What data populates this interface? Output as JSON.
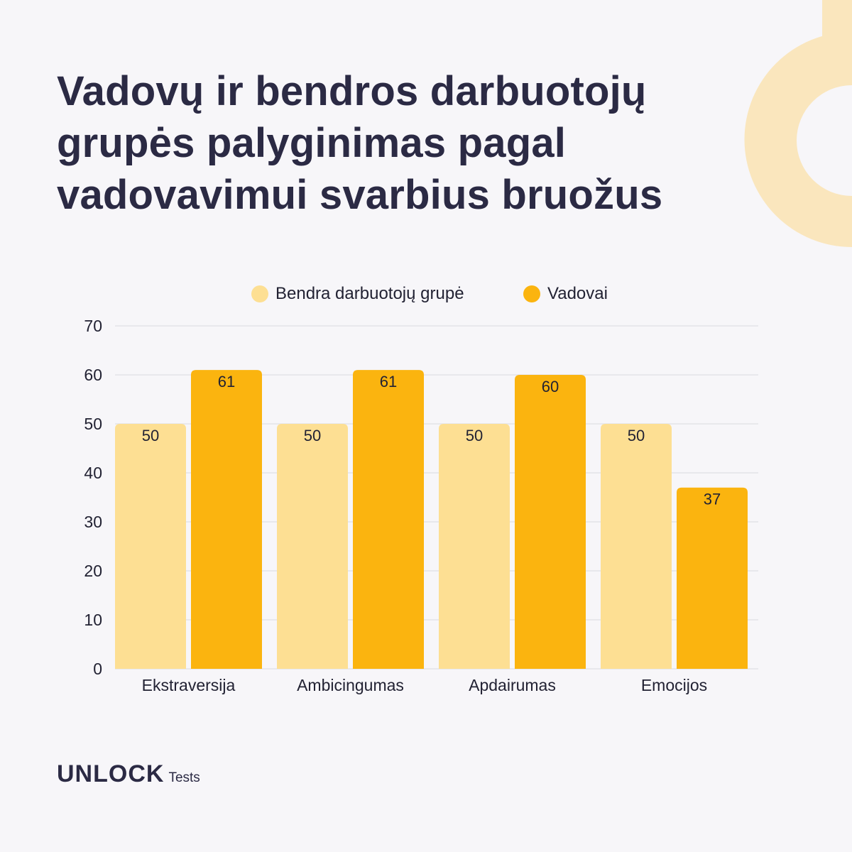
{
  "header": {
    "title_lines": [
      "Vadovų ir bendros darbuotojų",
      "grupės palyginimas pagal",
      "vadovavimui svarbius bruožus"
    ]
  },
  "colors": {
    "series_general": "#fddf93",
    "series_leaders": "#fbb40f",
    "decor": "#fae6bd",
    "text_dark": "#2b2a44",
    "grid": "#e4e3e8"
  },
  "chart_data": {
    "type": "bar",
    "categories": [
      "Ekstraversija",
      "Ambicingumas",
      "Apdairumas",
      "Emocijos"
    ],
    "series": [
      {
        "name": "Bendra darbuotojų grupė",
        "values": [
          50,
          50,
          50,
          50
        ],
        "color": "#fddf93"
      },
      {
        "name": "Vadovai",
        "values": [
          61,
          61,
          60,
          37
        ],
        "color": "#fbb40f"
      }
    ],
    "ylim": [
      0,
      70
    ],
    "yticks": [
      0,
      10,
      20,
      30,
      40,
      50,
      60,
      70
    ],
    "grid": true,
    "legend_position": "top-center",
    "data_labels": true
  },
  "brand": {
    "name": "UNLOCK",
    "suffix": "Tests"
  }
}
